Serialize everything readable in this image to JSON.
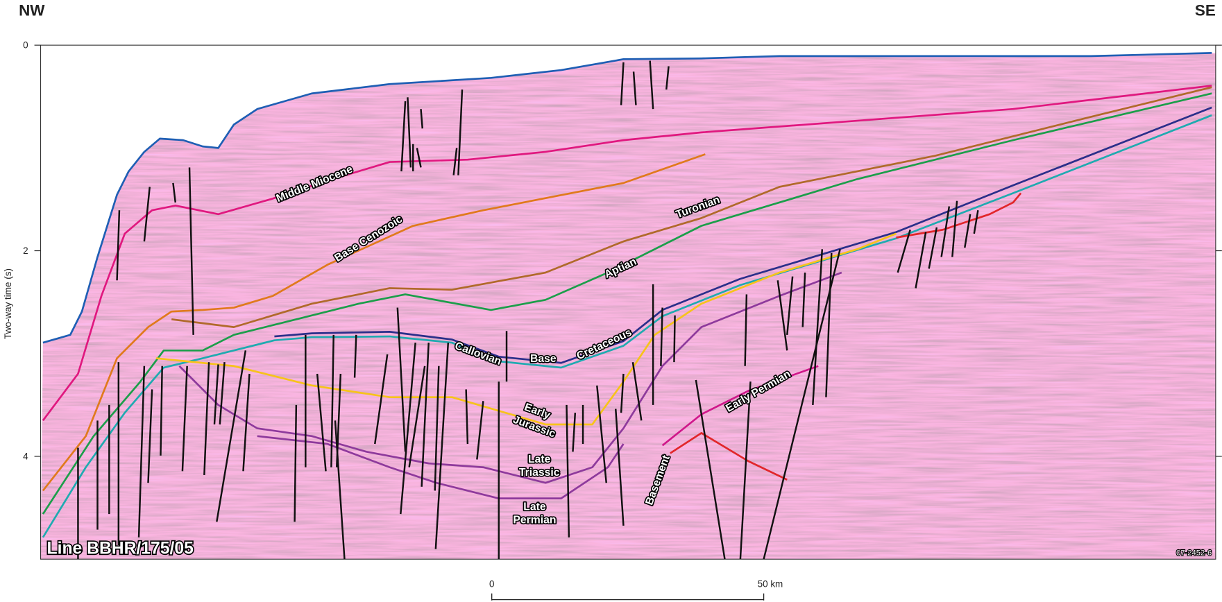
{
  "header": {
    "left": "NW",
    "right": "SE"
  },
  "axis": {
    "label": "Two-way time (s)",
    "ticks": [
      0,
      2,
      4
    ]
  },
  "horizon_labels": [
    [
      "Middle Miocene"
    ],
    [
      "Base Cenozoic"
    ],
    [
      "Turonian"
    ],
    [
      "Aptian"
    ],
    [
      "Callovian"
    ],
    [
      "Base"
    ],
    [
      "Cretaceous"
    ],
    [
      "Early",
      "Jurassic"
    ],
    [
      "Late",
      "Triassic"
    ],
    [
      "Late",
      "Permian"
    ],
    [
      "Early Permian"
    ],
    [
      "Basement"
    ]
  ],
  "line_label": "Line BBHR/175/05",
  "figure_id": "07-2452-6",
  "scale_bar": {
    "start": "0",
    "end": "50 km"
  }
}
